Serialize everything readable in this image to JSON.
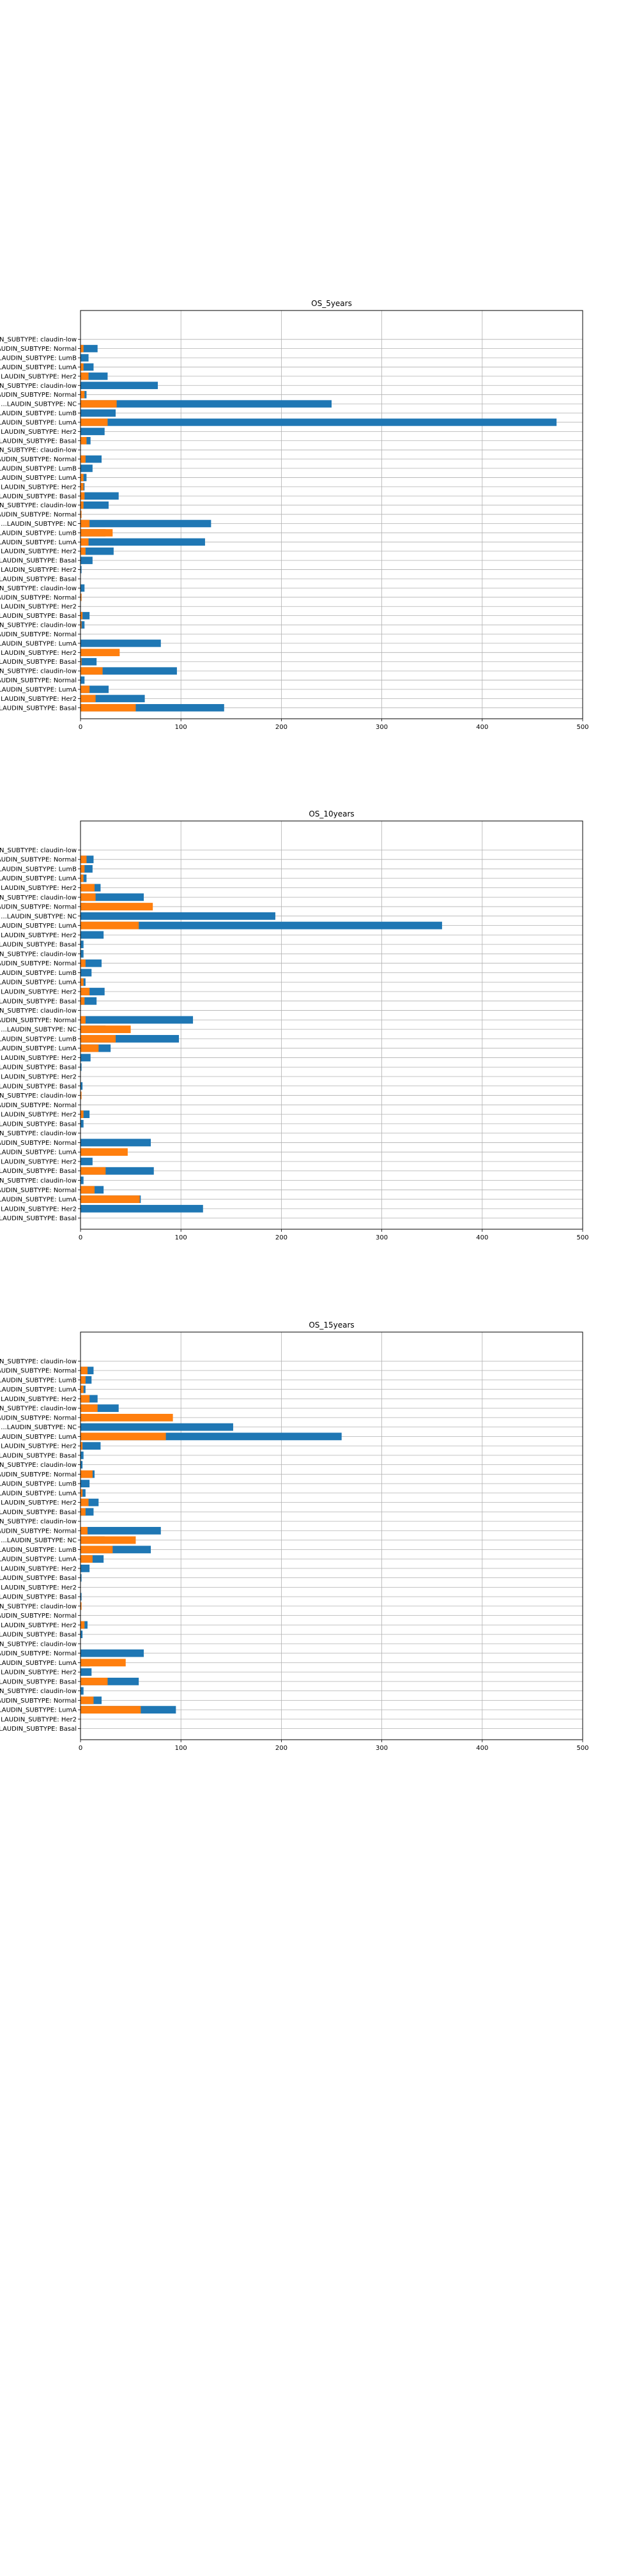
{
  "chart_data": [
    {
      "type": "bar",
      "orientation": "horizontal",
      "title": "OS_5years",
      "xlabel": "",
      "ylabel": "",
      "xlim": [
        0,
        500
      ],
      "xticks": [
        0,
        100,
        200,
        300,
        400,
        500
      ],
      "grid": true,
      "categories": [
        "...N_SUBTYPE: claudin-low",
        "...LAUDIN_SUBTYPE: Normal",
        "...LAUDIN_SUBTYPE: LumB",
        "...LAUDIN_SUBTYPE: LumA",
        "...LAUDIN_SUBTYPE: Her2",
        "...N_SUBTYPE: claudin-low",
        "...LAUDIN_SUBTYPE: Normal",
        "...LAUDIN_SUBTYPE: NC",
        "...LAUDIN_SUBTYPE: LumB",
        "...LAUDIN_SUBTYPE: LumA",
        "...LAUDIN_SUBTYPE: Her2",
        "...LAUDIN_SUBTYPE: Basal",
        "...N_SUBTYPE: claudin-low",
        "...LAUDIN_SUBTYPE: Normal",
        "...LAUDIN_SUBTYPE: LumB",
        "...LAUDIN_SUBTYPE: LumA",
        "...LAUDIN_SUBTYPE: Her2",
        "...LAUDIN_SUBTYPE: Basal",
        "...N_SUBTYPE: claudin-low",
        "...LAUDIN_SUBTYPE: Normal",
        "...LAUDIN_SUBTYPE: NC",
        "...LAUDIN_SUBTYPE: LumB",
        "...LAUDIN_SUBTYPE: LumA",
        "...LAUDIN_SUBTYPE: Her2",
        "...LAUDIN_SUBTYPE: Basal",
        "...LAUDIN_SUBTYPE: Her2",
        "...LAUDIN_SUBTYPE: Basal",
        "...N_SUBTYPE: claudin-low",
        "...LAUDIN_SUBTYPE: Normal",
        "...LAUDIN_SUBTYPE: Her2",
        "...LAUDIN_SUBTYPE: Basal",
        "...N_SUBTYPE: claudin-low",
        "...LAUDIN_SUBTYPE: Normal",
        "...LAUDIN_SUBTYPE: LumA",
        "...LAUDIN_SUBTYPE: Her2",
        "...LAUDIN_SUBTYPE: Basal",
        "...N_SUBTYPE: claudin-low",
        "...LAUDIN_SUBTYPE: Normal",
        "...LAUDIN_SUBTYPE: LumA",
        "...LAUDIN_SUBTYPE: Her2",
        "...LAUDIN_SUBTYPE: Basal"
      ],
      "series": [
        {
          "color": "#1f77b4",
          "values": [
            0,
            17,
            8,
            13,
            27,
            77,
            6,
            250,
            35,
            474,
            24,
            10,
            0,
            21,
            12,
            6,
            4,
            38,
            28,
            0,
            130,
            25,
            124,
            33,
            12,
            1,
            0,
            4,
            1,
            0,
            9,
            4,
            0,
            80,
            12,
            16,
            96,
            4,
            28,
            64,
            143
          ]
        },
        {
          "color": "#ff7f0e",
          "values": [
            0,
            3,
            0,
            3,
            8,
            0,
            4,
            36,
            0,
            27,
            0,
            6,
            0,
            5,
            0,
            3,
            3,
            4,
            3,
            1,
            9,
            32,
            8,
            5,
            0,
            0,
            0,
            0,
            1,
            0,
            2,
            1,
            0,
            0,
            39,
            1,
            22,
            0,
            9,
            15,
            55
          ]
        }
      ]
    },
    {
      "type": "bar",
      "orientation": "horizontal",
      "title": "OS_10years",
      "xlabel": "",
      "ylabel": "",
      "xlim": [
        0,
        500
      ],
      "xticks": [
        0,
        100,
        200,
        300,
        400,
        500
      ],
      "grid": true,
      "categories": [
        "...N_SUBTYPE: claudin-low",
        "...LAUDIN_SUBTYPE: Normal",
        "...LAUDIN_SUBTYPE: LumB",
        "...LAUDIN_SUBTYPE: LumA",
        "...LAUDIN_SUBTYPE: Her2",
        "...N_SUBTYPE: claudin-low",
        "...LAUDIN_SUBTYPE: Normal",
        "...LAUDIN_SUBTYPE: NC",
        "...LAUDIN_SUBTYPE: LumA",
        "...LAUDIN_SUBTYPE: Her2",
        "...LAUDIN_SUBTYPE: Basal",
        "...N_SUBTYPE: claudin-low",
        "...LAUDIN_SUBTYPE: Normal",
        "...LAUDIN_SUBTYPE: LumB",
        "...LAUDIN_SUBTYPE: LumA",
        "...LAUDIN_SUBTYPE: Her2",
        "...LAUDIN_SUBTYPE: Basal",
        "...N_SUBTYPE: claudin-low",
        "...LAUDIN_SUBTYPE: Normal",
        "...LAUDIN_SUBTYPE: NC",
        "...LAUDIN_SUBTYPE: LumB",
        "...LAUDIN_SUBTYPE: LumA",
        "...LAUDIN_SUBTYPE: Her2",
        "...LAUDIN_SUBTYPE: Basal",
        "...LAUDIN_SUBTYPE: Her2",
        "...LAUDIN_SUBTYPE: Basal",
        "...N_SUBTYPE: claudin-low",
        "...LAUDIN_SUBTYPE: Normal",
        "...LAUDIN_SUBTYPE: Her2",
        "...LAUDIN_SUBTYPE: Basal",
        "...N_SUBTYPE: claudin-low",
        "...LAUDIN_SUBTYPE: Normal",
        "...LAUDIN_SUBTYPE: LumA",
        "...LAUDIN_SUBTYPE: Her2",
        "...LAUDIN_SUBTYPE: Basal",
        "...N_SUBTYPE: claudin-low",
        "...LAUDIN_SUBTYPE: Normal",
        "...LAUDIN_SUBTYPE: LumA",
        "...LAUDIN_SUBTYPE: Her2",
        "...LAUDIN_SUBTYPE: Basal"
      ],
      "series": [
        {
          "color": "#1f77b4",
          "values": [
            0,
            13,
            12,
            6,
            20,
            63,
            5,
            194,
            360,
            23,
            3,
            3,
            21,
            11,
            5,
            24,
            16,
            0,
            112,
            25,
            98,
            30,
            10,
            1,
            0,
            2,
            0,
            0,
            9,
            3,
            0,
            70,
            10,
            12,
            73,
            3,
            23,
            60,
            122,
            0
          ]
        },
        {
          "color": "#ff7f0e",
          "values": [
            0,
            6,
            4,
            3,
            14,
            15,
            72,
            0,
            58,
            0,
            0,
            0,
            5,
            0,
            3,
            9,
            4,
            0,
            5,
            50,
            35,
            18,
            0,
            0,
            0,
            0,
            1,
            0,
            3,
            0,
            0,
            0,
            47,
            0,
            25,
            0,
            14,
            59,
            0,
            0
          ]
        }
      ]
    },
    {
      "type": "bar",
      "orientation": "horizontal",
      "title": "OS_15years",
      "xlabel": "",
      "ylabel": "",
      "xlim": [
        0,
        500
      ],
      "xticks": [
        0,
        100,
        200,
        300,
        400,
        500
      ],
      "grid": true,
      "categories": [
        "...N_SUBTYPE: claudin-low",
        "...LAUDIN_SUBTYPE: Normal",
        "...LAUDIN_SUBTYPE: LumB",
        "...LAUDIN_SUBTYPE: LumA",
        "...LAUDIN_SUBTYPE: Her2",
        "...N_SUBTYPE: claudin-low",
        "...LAUDIN_SUBTYPE: Normal",
        "...LAUDIN_SUBTYPE: NC",
        "...LAUDIN_SUBTYPE: LumA",
        "...LAUDIN_SUBTYPE: Her2",
        "...LAUDIN_SUBTYPE: Basal",
        "...N_SUBTYPE: claudin-low",
        "...LAUDIN_SUBTYPE: Normal",
        "...LAUDIN_SUBTYPE: LumB",
        "...LAUDIN_SUBTYPE: LumA",
        "...LAUDIN_SUBTYPE: Her2",
        "...LAUDIN_SUBTYPE: Basal",
        "...N_SUBTYPE: claudin-low",
        "...LAUDIN_SUBTYPE: Normal",
        "...LAUDIN_SUBTYPE: NC",
        "...LAUDIN_SUBTYPE: LumB",
        "...LAUDIN_SUBTYPE: LumA",
        "...LAUDIN_SUBTYPE: Her2",
        "...LAUDIN_SUBTYPE: Basal",
        "...LAUDIN_SUBTYPE: Her2",
        "...LAUDIN_SUBTYPE: Basal",
        "...N_SUBTYPE: claudin-low",
        "...LAUDIN_SUBTYPE: Normal",
        "...LAUDIN_SUBTYPE: Her2",
        "...LAUDIN_SUBTYPE: Basal",
        "...N_SUBTYPE: claudin-low",
        "...LAUDIN_SUBTYPE: Normal",
        "...LAUDIN_SUBTYPE: LumA",
        "...LAUDIN_SUBTYPE: Her2",
        "...LAUDIN_SUBTYPE: Basal",
        "...N_SUBTYPE: claudin-low",
        "...LAUDIN_SUBTYPE: Normal",
        "...LAUDIN_SUBTYPE: LumA",
        "...LAUDIN_SUBTYPE: Her2",
        "...LAUDIN_SUBTYPE: Basal"
      ],
      "series": [
        {
          "color": "#1f77b4",
          "values": [
            0,
            13,
            11,
            5,
            17,
            38,
            5,
            152,
            260,
            20,
            3,
            2,
            14,
            9,
            5,
            18,
            13,
            0,
            80,
            24,
            70,
            23,
            9,
            1,
            0,
            1,
            0,
            0,
            7,
            2,
            0,
            63,
            9,
            11,
            58,
            3,
            21,
            95,
            0,
            0
          ]
        },
        {
          "color": "#ff7f0e",
          "values": [
            0,
            7,
            5,
            3,
            9,
            17,
            92,
            0,
            85,
            2,
            0,
            0,
            12,
            0,
            2,
            8,
            5,
            0,
            7,
            55,
            32,
            12,
            0,
            0,
            0,
            0,
            1,
            0,
            4,
            0,
            0,
            0,
            45,
            0,
            27,
            0,
            13,
            60,
            0,
            0
          ]
        }
      ]
    }
  ]
}
